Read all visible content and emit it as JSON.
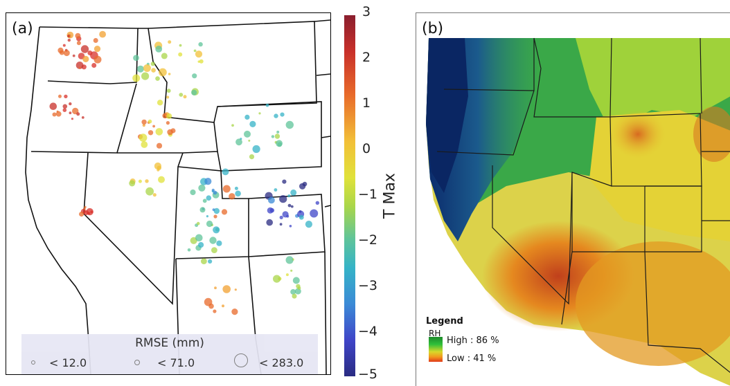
{
  "panel_a": {
    "label": "(a)",
    "colorbar": {
      "title": "T Max",
      "ticks": [
        "3",
        "2",
        "1",
        "0",
        "−1",
        "−2",
        "−3",
        "−4",
        "−5"
      ],
      "range": [
        -5,
        3
      ],
      "colors": [
        "#8a1e2e",
        "#c8302a",
        "#e86a2a",
        "#f2c038",
        "#e0e23a",
        "#a9d64a",
        "#5fc49a",
        "#35b3c7",
        "#3b8ad6",
        "#3f45c8",
        "#2a2b82"
      ]
    },
    "size_legend": {
      "title": "RMSE (mm)",
      "items": [
        "< 12.0",
        "< 71.0",
        "< 283.0"
      ]
    }
  },
  "panel_b": {
    "label": "(b)",
    "legend": {
      "title": "Legend",
      "variable": "RH",
      "high": "High : 86 %",
      "low": "Low : 41 %",
      "colors": [
        "#1d8a2a",
        "#2fbf3a",
        "#d8d82a",
        "#f29a1e",
        "#e03a1a"
      ]
    }
  }
}
